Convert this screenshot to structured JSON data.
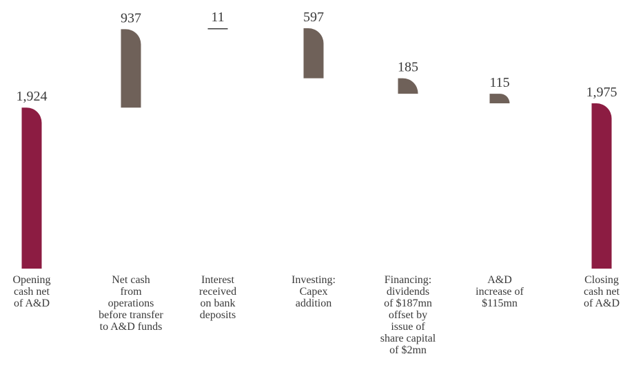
{
  "chart_data": {
    "type": "waterfall",
    "categories": [
      "Opening\ncash net\nof A&D",
      "Net cash\nfrom\noperations\nbefore transfer\nto A&D funds",
      "Interest\nreceived\non bank\ndeposits",
      "Investing:\nCapex\naddition",
      "Financing:\ndividends\nof $187mn\noffset by\nissue of\nshare capital\nof $2mn",
      "A&D\nincrease of\n$115mn",
      "Closing\ncash net\nof A&D"
    ],
    "measure": [
      "absolute",
      "relative",
      "relative",
      "relative",
      "relative",
      "relative",
      "absolute"
    ],
    "values": [
      1924,
      937,
      11,
      -597,
      -185,
      -115,
      1975
    ],
    "value_labels": [
      "1,924",
      "937",
      "11",
      "597",
      "185",
      "115",
      "1,975"
    ],
    "total_color": "#8c1c42",
    "change_color": "#6f6159"
  }
}
